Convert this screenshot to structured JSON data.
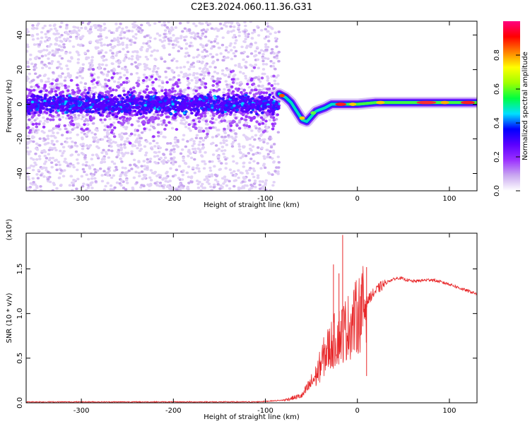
{
  "figure": {
    "title": "C2E3.2024.060.11.36.G31"
  },
  "chart_data": [
    {
      "type": "heatmap",
      "xlabel": "Height of straight line (km)",
      "ylabel": "Frequency (Hz)",
      "xlim": [
        -360,
        130
      ],
      "ylim": [
        -50,
        48
      ],
      "x_ticks": [
        -300,
        -200,
        -100,
        0,
        100
      ],
      "y_ticks": [
        -40,
        -20,
        0,
        20,
        40
      ],
      "noise_region_x": [
        -360,
        -85
      ],
      "signal_track": [
        {
          "x": -85,
          "y": 6
        },
        {
          "x": -78,
          "y": 4
        },
        {
          "x": -72,
          "y": 1
        },
        {
          "x": -66,
          "y": -4
        },
        {
          "x": -60,
          "y": -9
        },
        {
          "x": -55,
          "y": -10
        },
        {
          "x": -50,
          "y": -7
        },
        {
          "x": -45,
          "y": -4
        },
        {
          "x": -40,
          "y": -3
        },
        {
          "x": -35,
          "y": -2
        },
        {
          "x": -28,
          "y": 0
        },
        {
          "x": -20,
          "y": 0
        },
        {
          "x": -10,
          "y": 0
        },
        {
          "x": 0,
          "y": 0
        },
        {
          "x": 20,
          "y": 1
        },
        {
          "x": 40,
          "y": 1
        },
        {
          "x": 60,
          "y": 1
        },
        {
          "x": 80,
          "y": 1
        },
        {
          "x": 100,
          "y": 1
        },
        {
          "x": 130,
          "y": 1
        }
      ],
      "colorbar": {
        "label": "Normalized spectral amplitude",
        "range": [
          0,
          1
        ],
        "ticks": [
          "0.0",
          "0.2",
          "0.4",
          "0.6",
          "0.8"
        ],
        "tick_values": [
          0.0,
          0.2,
          0.4,
          0.6,
          0.8
        ],
        "colors": [
          "#ffffff",
          "#c9a8f0",
          "#9b30ff",
          "#5a00ff",
          "#0000ff",
          "#00e0ff",
          "#00ff40",
          "#a0ff00",
          "#ffff00",
          "#ff8000",
          "#ff0000",
          "#ff0080"
        ]
      }
    },
    {
      "type": "line",
      "xlabel": "Height of straight line (km)",
      "ylabel": "SNR (10 * v/v)",
      "multiplier_label": "(x10⁴)",
      "xlim": [
        -360,
        130
      ],
      "ylim": [
        0,
        1.9
      ],
      "x_ticks": [
        -300,
        -200,
        -100,
        0,
        100
      ],
      "y_ticks": [
        "0.0",
        "0.5",
        "1.0",
        "1.5"
      ],
      "y_tick_values": [
        0.0,
        0.5,
        1.0,
        1.5
      ],
      "color": "#e8282a",
      "series_profile": [
        {
          "x": -360,
          "y": 0.01
        },
        {
          "x": -110,
          "y": 0.01
        },
        {
          "x": -80,
          "y": 0.03
        },
        {
          "x": -60,
          "y": 0.08
        },
        {
          "x": -45,
          "y": 0.3
        },
        {
          "x": -35,
          "y": 0.55
        },
        {
          "x": -25,
          "y": 0.7
        },
        {
          "x": -15,
          "y": 0.8
        },
        {
          "x": -5,
          "y": 0.9
        },
        {
          "x": 5,
          "y": 1.05
        },
        {
          "x": 15,
          "y": 1.2
        },
        {
          "x": 25,
          "y": 1.3
        },
        {
          "x": 35,
          "y": 1.37
        },
        {
          "x": 45,
          "y": 1.4
        },
        {
          "x": 60,
          "y": 1.36
        },
        {
          "x": 80,
          "y": 1.38
        },
        {
          "x": 100,
          "y": 1.33
        },
        {
          "x": 115,
          "y": 1.27
        },
        {
          "x": 130,
          "y": 1.22
        }
      ],
      "spikes": [
        {
          "x": -26,
          "y": 1.55
        },
        {
          "x": -16,
          "y": 1.88
        },
        {
          "x": -20,
          "y": 1.45
        },
        {
          "x": 10,
          "y": 1.52
        },
        {
          "x": 10,
          "y": 0.3
        }
      ]
    }
  ]
}
